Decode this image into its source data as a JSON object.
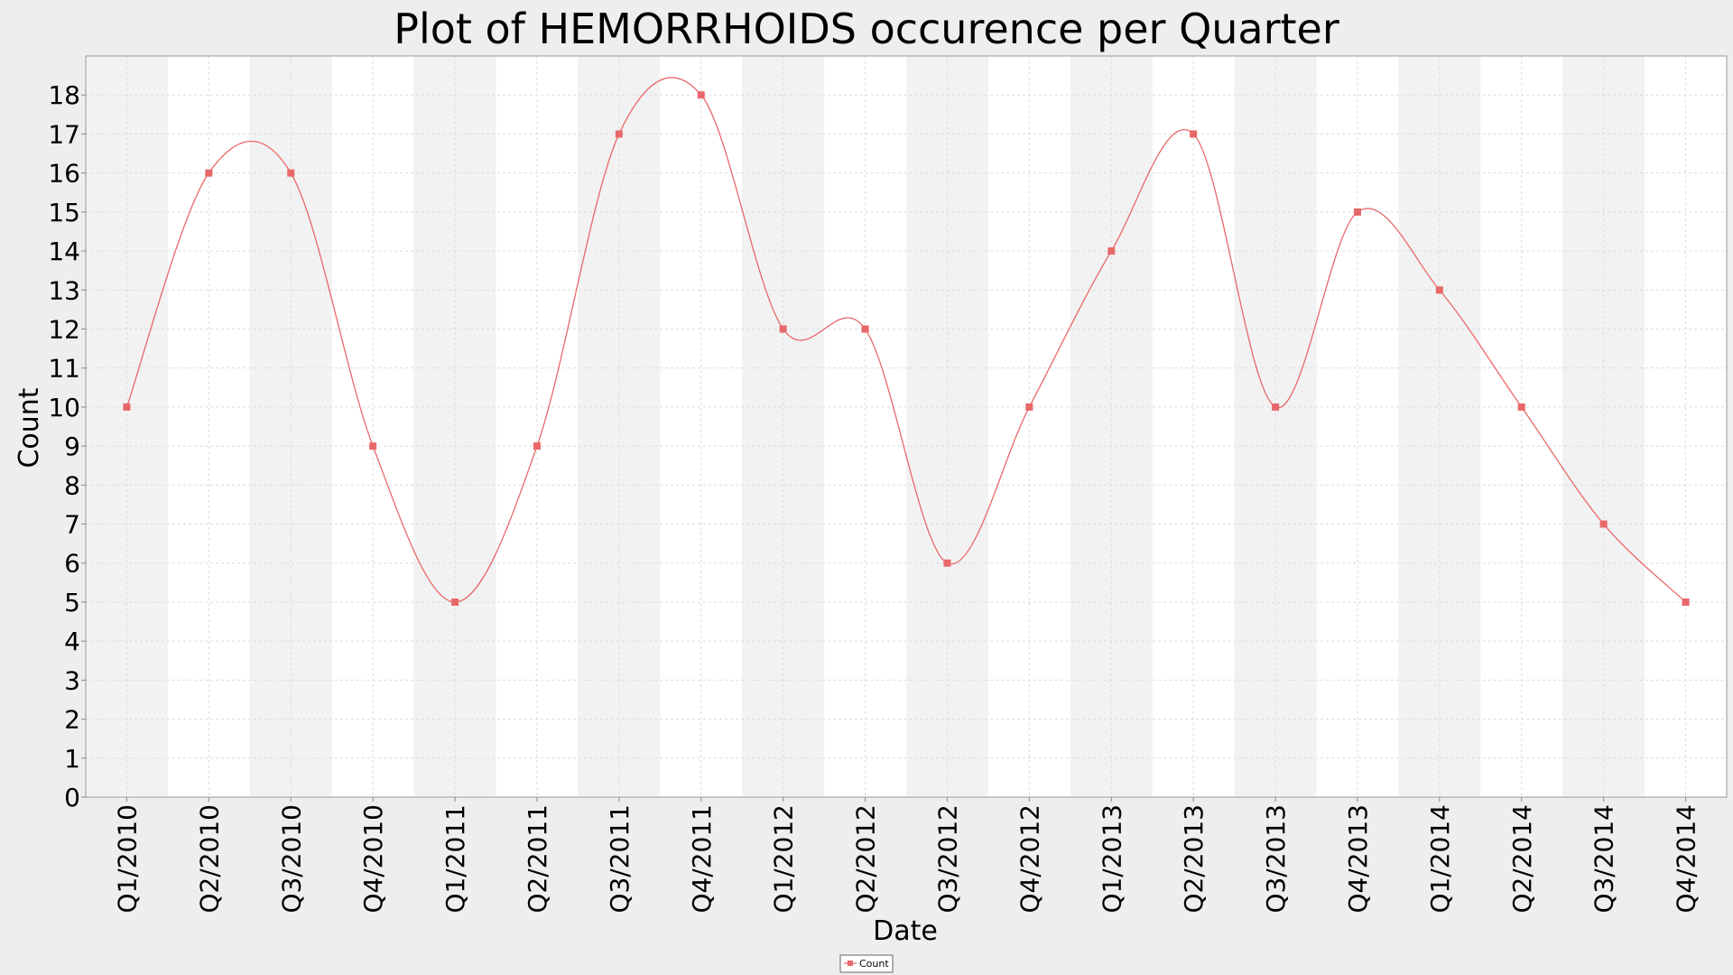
{
  "chart_data": {
    "type": "line",
    "title": "Plot of HEMORRHOIDS occurence per Quarter",
    "xlabel": "Date",
    "ylabel": "Count",
    "categories": [
      "Q1/2010",
      "Q2/2010",
      "Q3/2010",
      "Q4/2010",
      "Q1/2011",
      "Q2/2011",
      "Q3/2011",
      "Q4/2011",
      "Q1/2012",
      "Q2/2012",
      "Q3/2012",
      "Q4/2012",
      "Q1/2013",
      "Q2/2013",
      "Q3/2013",
      "Q4/2013",
      "Q1/2014",
      "Q2/2014",
      "Q3/2014",
      "Q4/2014"
    ],
    "series": [
      {
        "name": "Count",
        "color": "#e8686a",
        "values": [
          10,
          16,
          16,
          9,
          5,
          9,
          17,
          18,
          12,
          12,
          6,
          10,
          14,
          17,
          10,
          15,
          13,
          10,
          7,
          5
        ]
      }
    ],
    "ylim": [
      0,
      19
    ],
    "yticks": [
      0,
      1,
      2,
      3,
      4,
      5,
      6,
      7,
      8,
      9,
      10,
      11,
      12,
      13,
      14,
      15,
      16,
      17,
      18
    ],
    "grid": true,
    "alternating_bands": true,
    "smoothed": true,
    "legend": {
      "position": "bottom-center",
      "entries": [
        "Count"
      ]
    }
  }
}
